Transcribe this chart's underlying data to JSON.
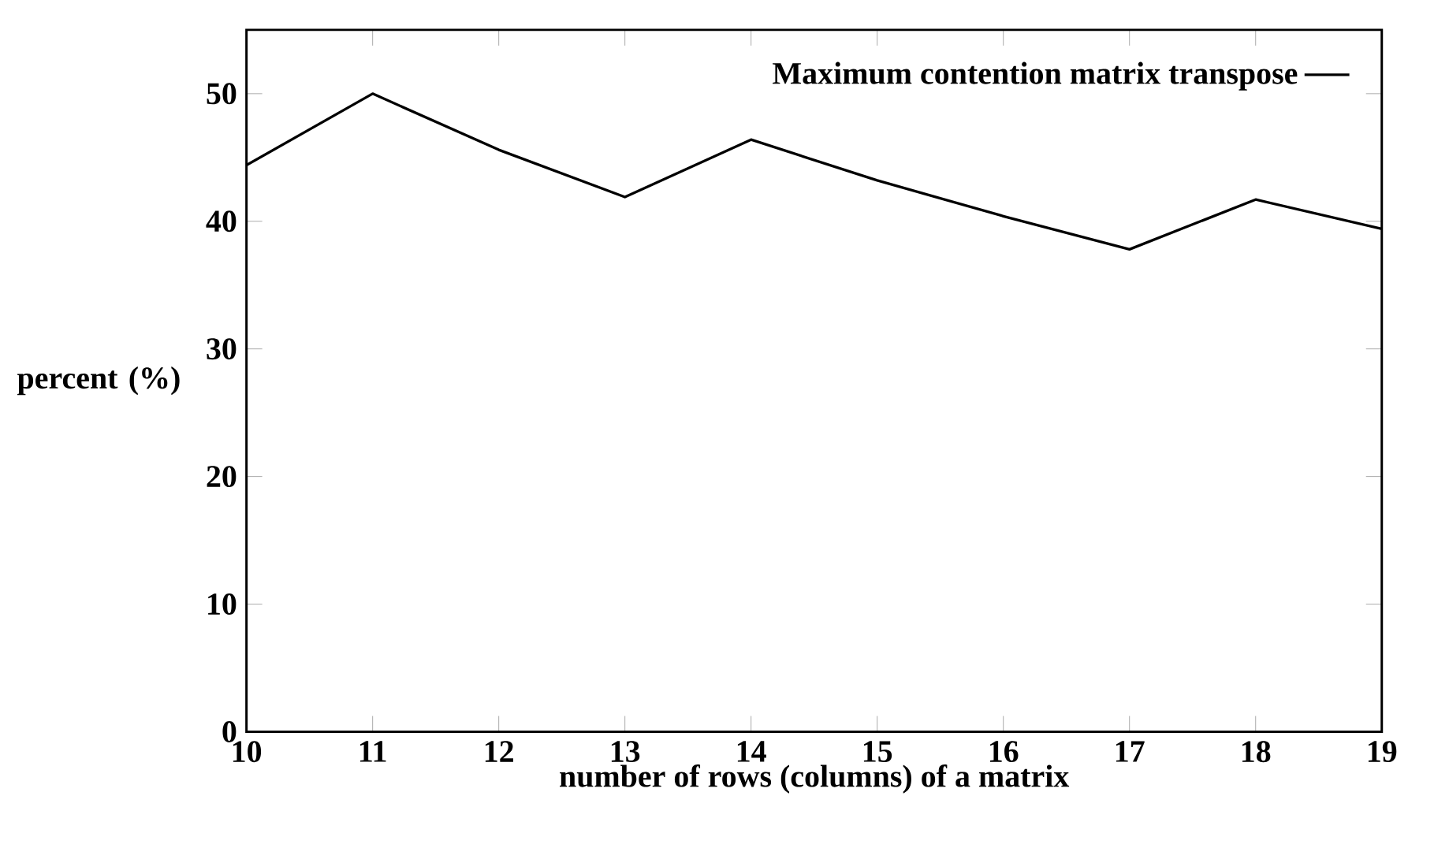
{
  "chart_data": {
    "type": "line",
    "xlabel": "number of rows (columns) of a matrix",
    "ylabel": "percent (%)",
    "x": [
      10,
      11,
      12,
      13,
      14,
      15,
      16,
      17,
      18,
      19
    ],
    "series": [
      {
        "name": "Maximum contention matrix transpose",
        "color": "#000000",
        "values": [
          44.4,
          50,
          45.6,
          41.9,
          46.4,
          43.2,
          40.4,
          37.8,
          41.7,
          39.4
        ]
      }
    ],
    "xlim": [
      10,
      19
    ],
    "ylim": [
      0,
      55
    ],
    "xticks": [
      10,
      11,
      12,
      13,
      14,
      15,
      16,
      17,
      18,
      19
    ],
    "yticks": [
      0,
      10,
      20,
      30,
      40,
      50
    ],
    "legend": "top right",
    "grid": false,
    "marker": "none",
    "line_style": "solid"
  }
}
